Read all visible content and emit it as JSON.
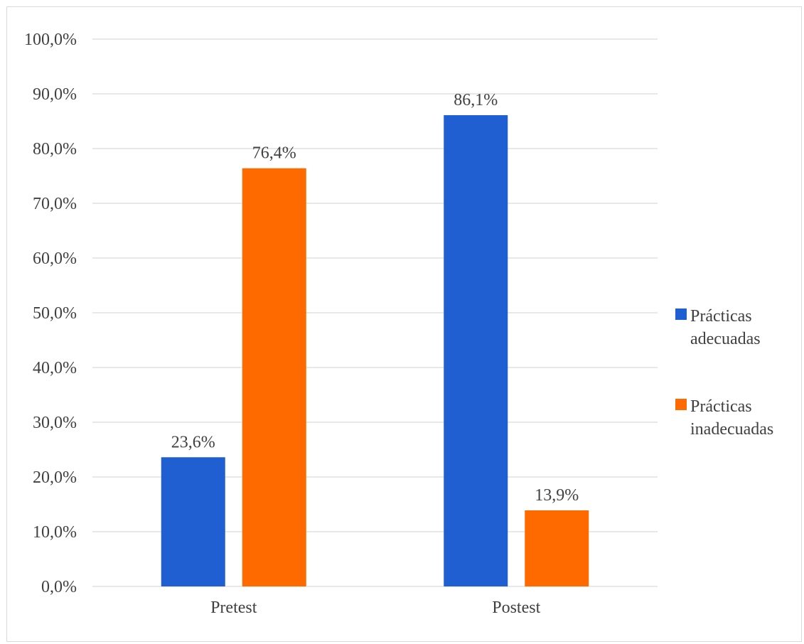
{
  "chart_data": {
    "type": "bar",
    "categories": [
      "Pretest",
      "Postest"
    ],
    "series": [
      {
        "name": "Prácticas adecuadas",
        "values": [
          23.6,
          86.1
        ],
        "labels": [
          "23,6%",
          "86,1%"
        ],
        "color": "#1f5fd1"
      },
      {
        "name": "Prácticas inadecuadas",
        "values": [
          76.4,
          13.9
        ],
        "labels": [
          "76,4%",
          "13,9%"
        ],
        "color": "#ff6a00"
      }
    ],
    "ylim": [
      0,
      100
    ],
    "yticks": [
      0,
      10,
      20,
      30,
      40,
      50,
      60,
      70,
      80,
      90,
      100
    ],
    "ytick_labels": [
      "0,0%",
      "10,0%",
      "20,0%",
      "30,0%",
      "40,0%",
      "50,0%",
      "60,0%",
      "70,0%",
      "80,0%",
      "90,0%",
      "100,0%"
    ],
    "grid": true,
    "legend_position": "right",
    "legend": [
      {
        "lines": [
          "Prácticas",
          "adecuadas"
        ],
        "color": "#1f5fd1"
      },
      {
        "lines": [
          "Prácticas",
          "inadecuadas"
        ],
        "color": "#ff6a00"
      }
    ]
  }
}
